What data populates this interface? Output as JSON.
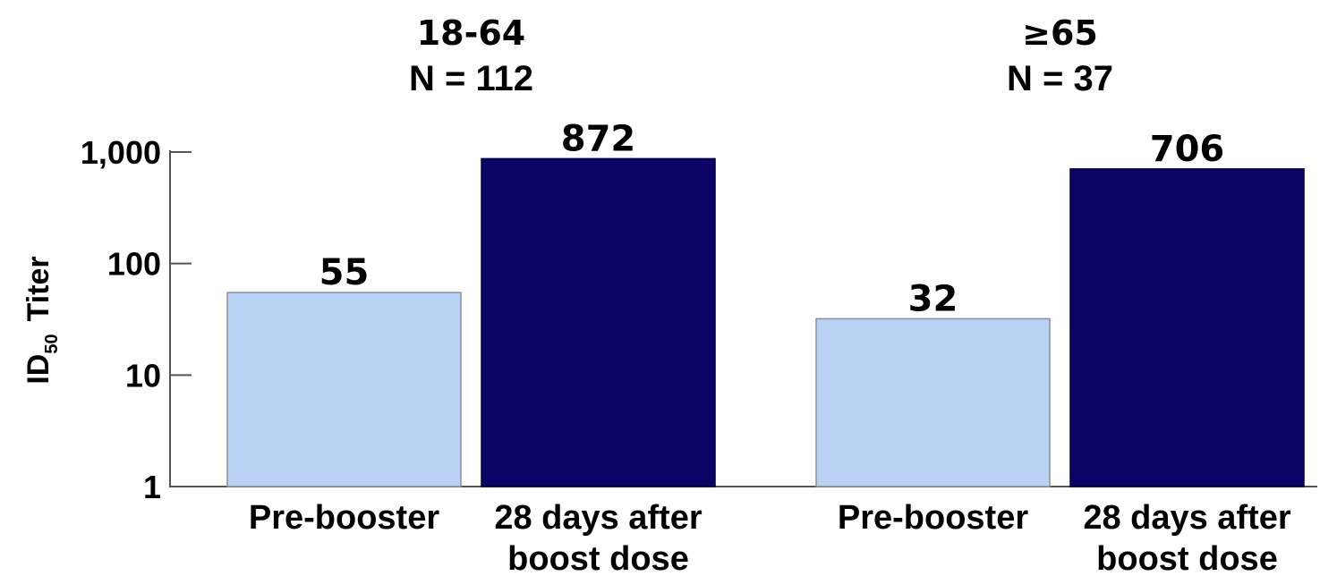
{
  "chart_data": {
    "type": "bar",
    "y_scale": "log",
    "ylim": [
      1,
      1000
    ],
    "yticks": [
      1,
      10,
      100,
      1000
    ],
    "ytick_labels": [
      "1",
      "10",
      "100",
      "1,000"
    ],
    "ylabel": {
      "main": "ID",
      "subscript": "50",
      "suffix": "Titer"
    },
    "groups": [
      {
        "title": "18-64",
        "n_label": "N = 112",
        "bars": [
          {
            "category": [
              "Pre-booster"
            ],
            "value": 55,
            "label": "55",
            "color": "#b9d2f4"
          },
          {
            "category": [
              "28 days after",
              "boost dose"
            ],
            "value": 872,
            "label": "872",
            "color": "#0a0466"
          }
        ]
      },
      {
        "title": "≥65",
        "n_label": "N = 37",
        "bars": [
          {
            "category": [
              "Pre-booster"
            ],
            "value": 32,
            "label": "32",
            "color": "#b9d2f4"
          },
          {
            "category": [
              "28 days after",
              "boost dose"
            ],
            "value": 706,
            "label": "706",
            "color": "#0a0466"
          }
        ]
      }
    ],
    "grid": false
  }
}
